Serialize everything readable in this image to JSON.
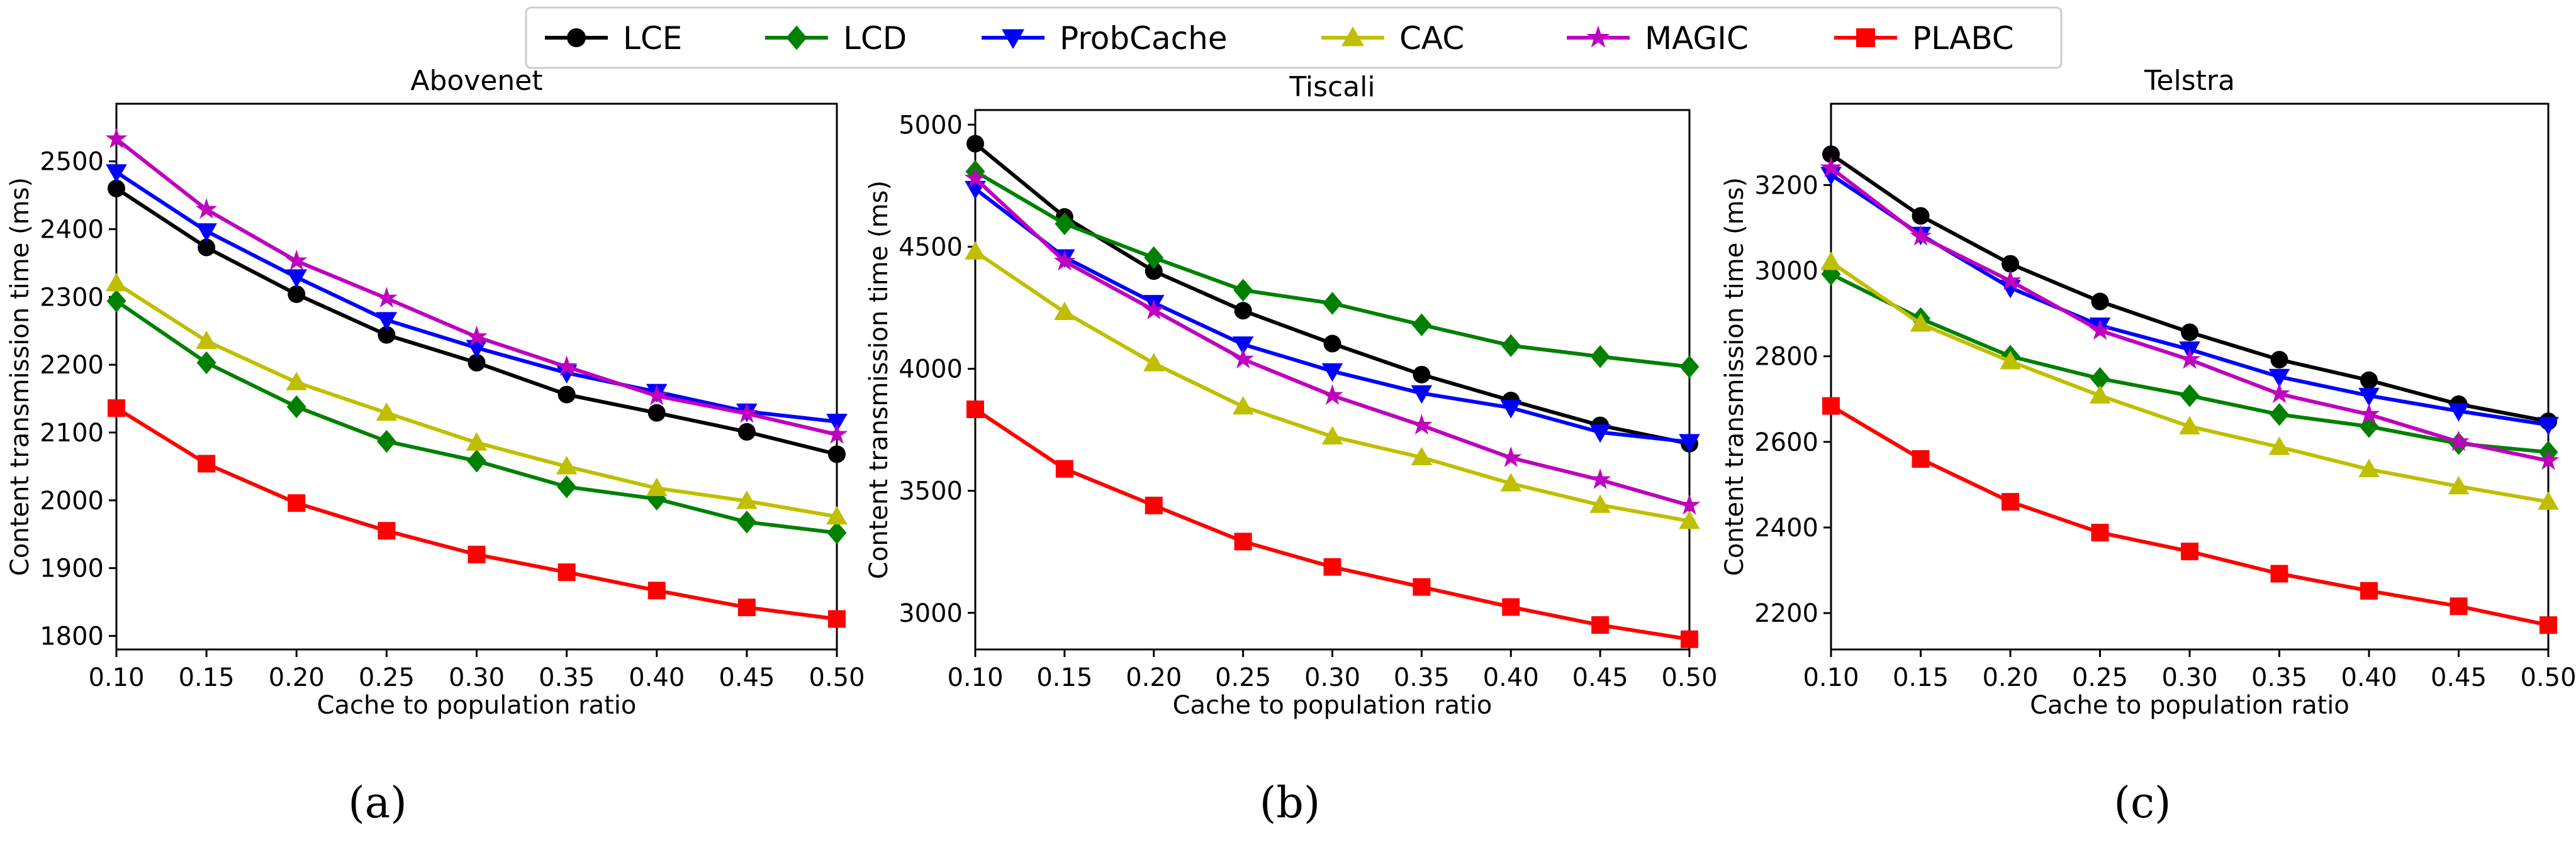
{
  "colors": {
    "LCE": "#000000",
    "LCD": "#008000",
    "ProbCache": "#0000ff",
    "CAC": "#bfbf00",
    "MAGIC": "#bf00bf",
    "PLABC": "#ff0000"
  },
  "legend": {
    "entries": [
      {
        "name": "LCE",
        "marker": "circle"
      },
      {
        "name": "LCD",
        "marker": "diamond"
      },
      {
        "name": "ProbCache",
        "marker": "triangle-down"
      },
      {
        "name": "CAC",
        "marker": "triangle-up"
      },
      {
        "name": "MAGIC",
        "marker": "star"
      },
      {
        "name": "PLABC",
        "marker": "square"
      }
    ],
    "placement": "top-center"
  },
  "chart_data": [
    {
      "type": "line",
      "panel_label": "(a)",
      "title": "Abovenet",
      "xlabel": "Cache to population ratio",
      "ylabel": "Content transmission time (ms)",
      "x": [
        0.1,
        0.15,
        0.2,
        0.25,
        0.3,
        0.35,
        0.4,
        0.45,
        0.5
      ],
      "x_ticks": [
        "0.10",
        "0.15",
        "0.20",
        "0.25",
        "0.30",
        "0.35",
        "0.40",
        "0.45",
        "0.50"
      ],
      "xlim": [
        0.1,
        0.5
      ],
      "ylim": [
        1780,
        2585
      ],
      "y_ticks": [
        1800,
        1900,
        2000,
        2100,
        2200,
        2300,
        2400,
        2500
      ],
      "series": [
        {
          "name": "LCE",
          "values": [
            2460,
            2373,
            2304,
            2244,
            2203,
            2156,
            2129,
            2101,
            2068
          ]
        },
        {
          "name": "LCD",
          "values": [
            2294,
            2203,
            2138,
            2087,
            2058,
            2020,
            2002,
            1968,
            1952
          ]
        },
        {
          "name": "ProbCache",
          "values": [
            2484,
            2397,
            2329,
            2266,
            2225,
            2188,
            2160,
            2131,
            2116
          ]
        },
        {
          "name": "CAC",
          "values": [
            2320,
            2235,
            2174,
            2129,
            2085,
            2050,
            2018,
            1999,
            1976
          ]
        },
        {
          "name": "MAGIC",
          "values": [
            2533,
            2429,
            2353,
            2298,
            2241,
            2197,
            2154,
            2128,
            2097
          ]
        },
        {
          "name": "PLABC",
          "values": [
            2136,
            2054,
            1996,
            1955,
            1920,
            1894,
            1867,
            1842,
            1825
          ]
        }
      ]
    },
    {
      "type": "line",
      "panel_label": "(b)",
      "title": "Tiscali",
      "xlabel": "Cache to population ratio",
      "ylabel": "Content transmission time (ms)",
      "x": [
        0.1,
        0.15,
        0.2,
        0.25,
        0.3,
        0.35,
        0.4,
        0.45,
        0.5
      ],
      "x_ticks": [
        "0.10",
        "0.15",
        "0.20",
        "0.25",
        "0.30",
        "0.35",
        "0.40",
        "0.45",
        "0.50"
      ],
      "xlim": [
        0.1,
        0.5
      ],
      "ylim": [
        2850,
        5060
      ],
      "y_ticks": [
        3000,
        3500,
        4000,
        4500,
        5000
      ],
      "series": [
        {
          "name": "LCE",
          "values": [
            4922,
            4622,
            4400,
            4238,
            4103,
            3976,
            3870,
            3768,
            3693
          ]
        },
        {
          "name": "LCD",
          "values": [
            4808,
            4594,
            4455,
            4322,
            4268,
            4180,
            4095,
            4050,
            4008
          ]
        },
        {
          "name": "ProbCache",
          "values": [
            4737,
            4457,
            4270,
            4100,
            3990,
            3900,
            3840,
            3740,
            3700
          ]
        },
        {
          "name": "CAC",
          "values": [
            4480,
            4232,
            4022,
            3845,
            3722,
            3637,
            3530,
            3442,
            3376
          ]
        },
        {
          "name": "MAGIC",
          "values": [
            4780,
            4440,
            4240,
            4039,
            3890,
            3768,
            3635,
            3545,
            3440
          ]
        },
        {
          "name": "PLABC",
          "values": [
            3834,
            3590,
            3440,
            3292,
            3188,
            3106,
            3024,
            2950,
            2892
          ]
        }
      ]
    },
    {
      "type": "line",
      "panel_label": "(c)",
      "title": "Telstra",
      "xlabel": "Cache to population ratio",
      "ylabel": "Content transmission time (ms)",
      "x": [
        0.1,
        0.15,
        0.2,
        0.25,
        0.3,
        0.35,
        0.4,
        0.45,
        0.5
      ],
      "x_ticks": [
        "0.10",
        "0.15",
        "0.20",
        "0.25",
        "0.30",
        "0.35",
        "0.40",
        "0.45",
        "0.50"
      ],
      "xlim": [
        0.1,
        0.5
      ],
      "ylim": [
        2115,
        3390
      ],
      "y_ticks": [
        2200,
        2400,
        2600,
        2800,
        3000,
        3200
      ],
      "series": [
        {
          "name": "LCE",
          "values": [
            3272,
            3128,
            3016,
            2928,
            2856,
            2792,
            2744,
            2688,
            2648
          ]
        },
        {
          "name": "LCD",
          "values": [
            2992,
            2888,
            2800,
            2748,
            2708,
            2664,
            2636,
            2596,
            2576
          ]
        },
        {
          "name": "ProbCache",
          "values": [
            3224,
            3084,
            2960,
            2872,
            2816,
            2752,
            2708,
            2672,
            2640
          ]
        },
        {
          "name": "CAC",
          "values": [
            3020,
            2876,
            2788,
            2708,
            2636,
            2588,
            2536,
            2496,
            2460
          ]
        },
        {
          "name": "MAGIC",
          "values": [
            3240,
            3080,
            2976,
            2860,
            2792,
            2712,
            2664,
            2600,
            2556
          ]
        },
        {
          "name": "PLABC",
          "values": [
            2684,
            2560,
            2460,
            2388,
            2344,
            2292,
            2252,
            2216,
            2172
          ]
        }
      ]
    }
  ]
}
